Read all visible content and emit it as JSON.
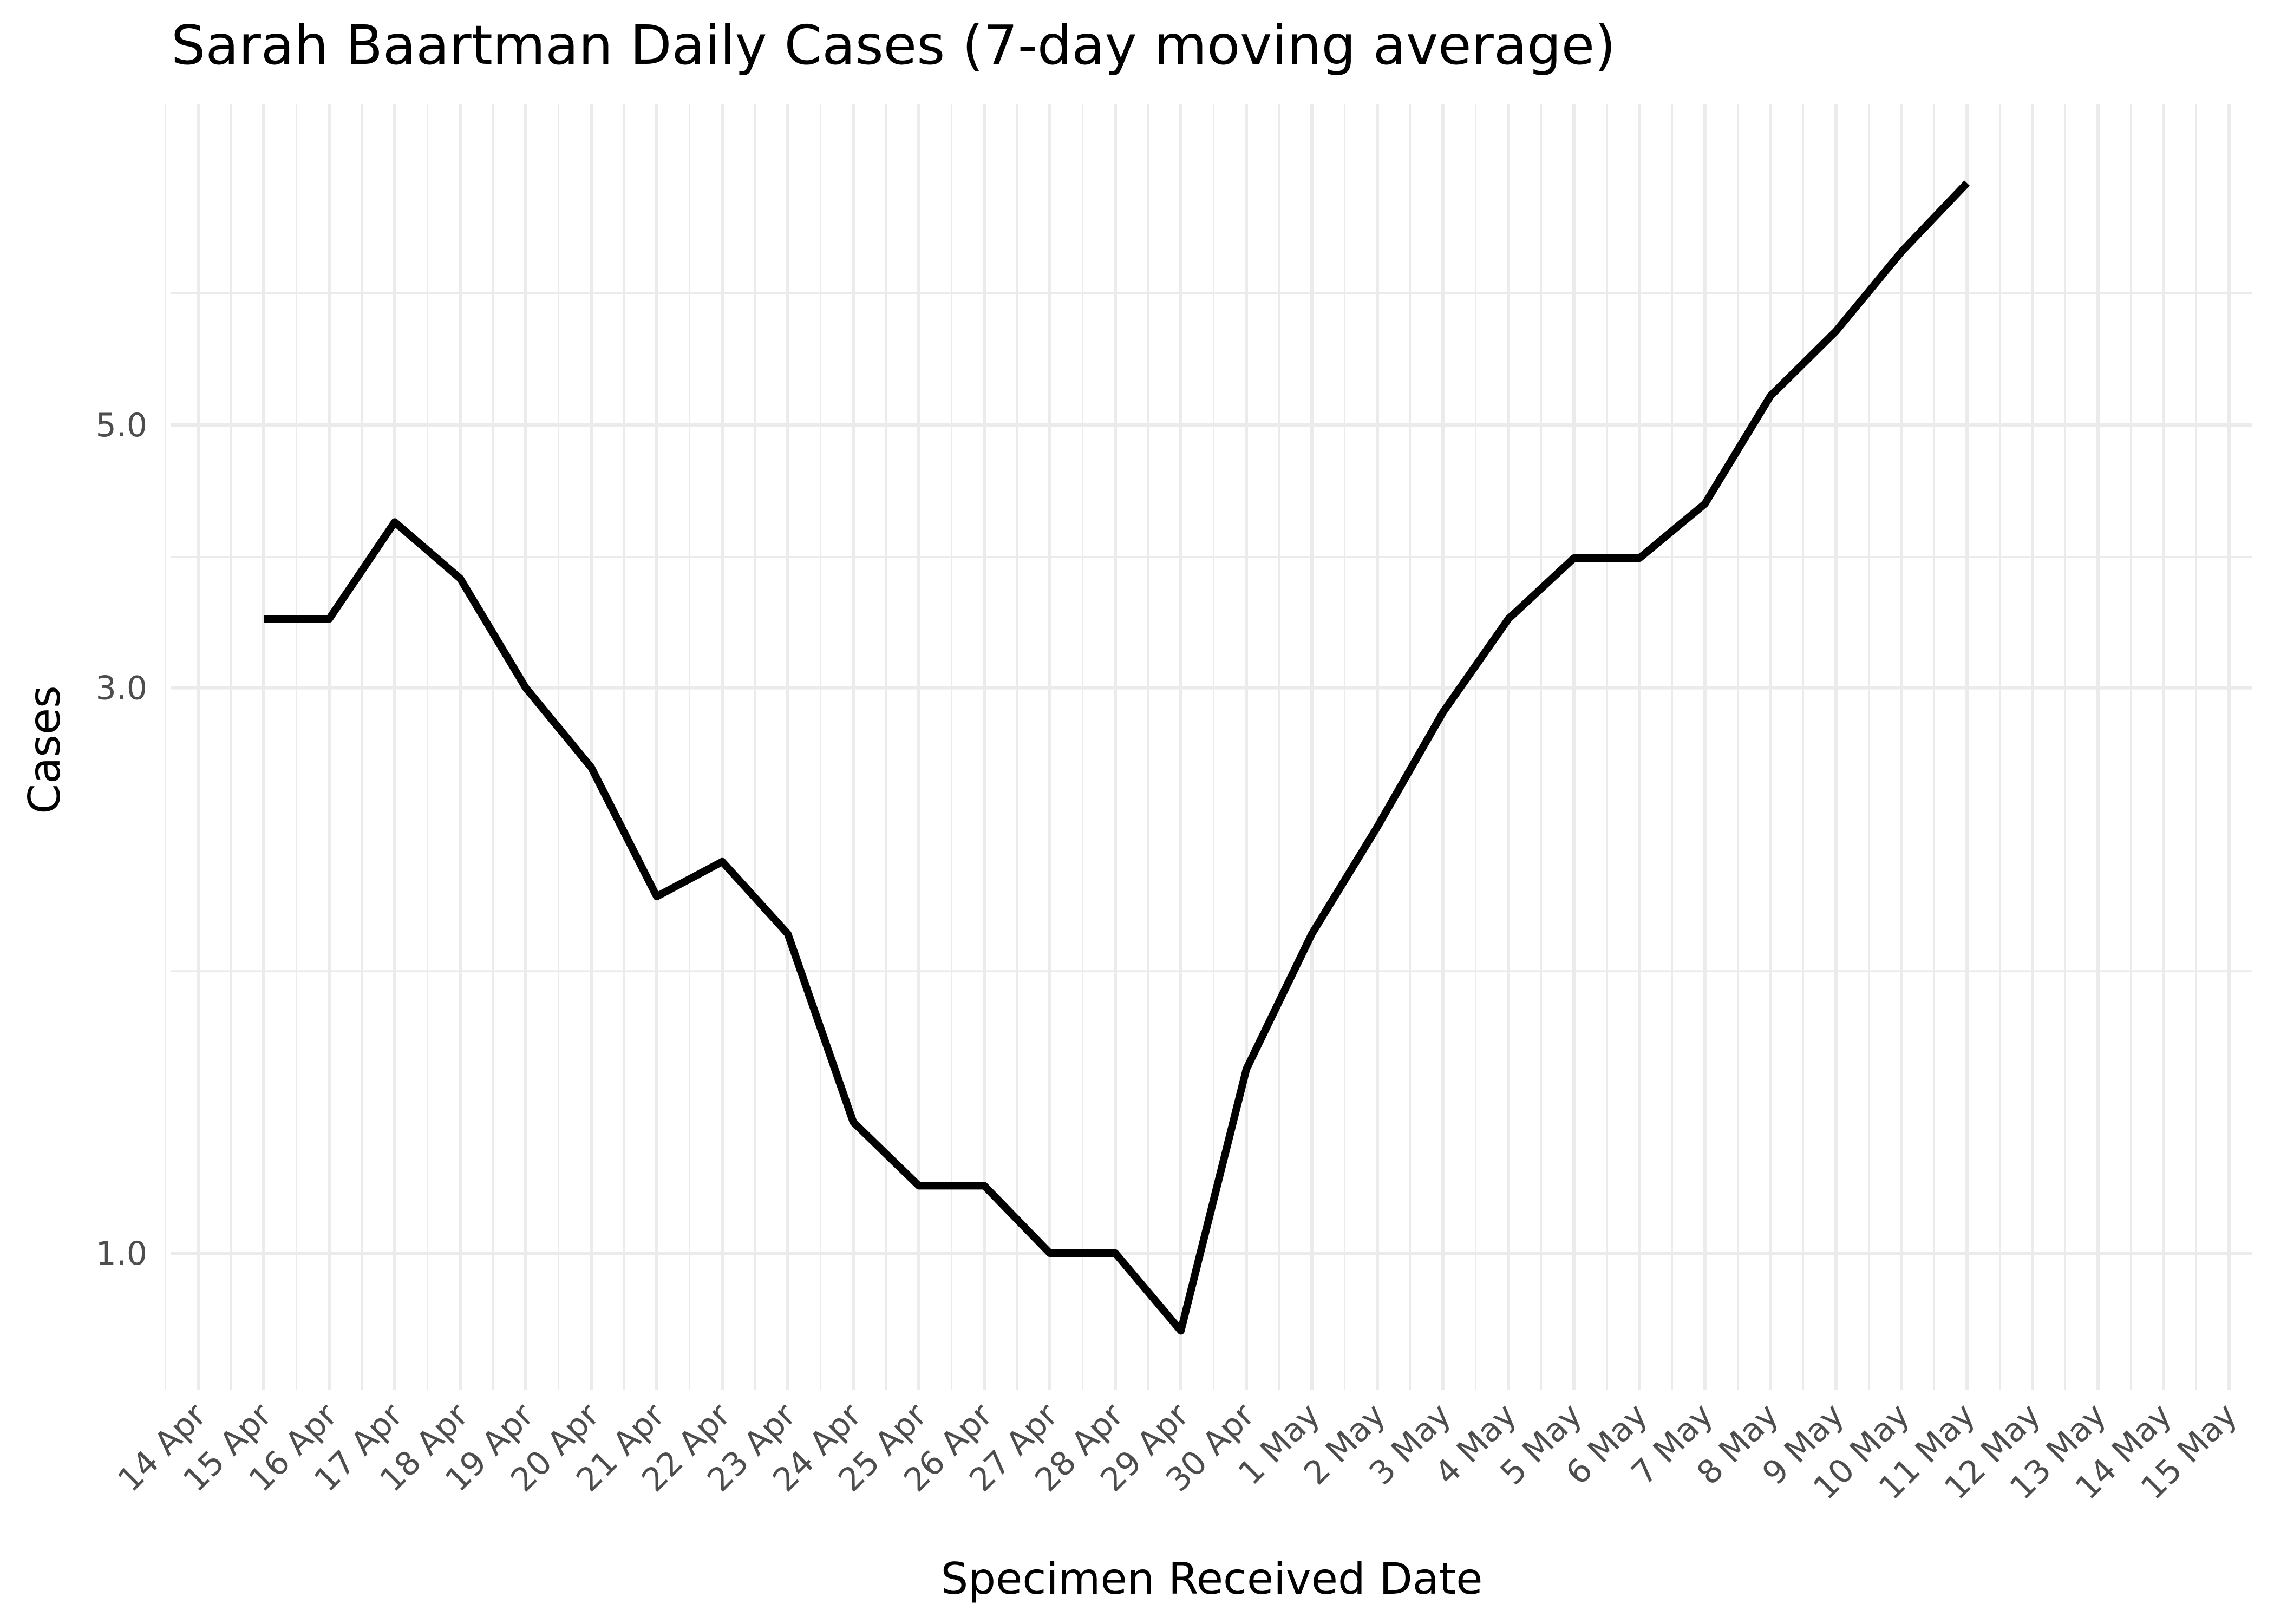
{
  "chart_data": {
    "type": "line",
    "title": "Sarah Baartman Daily Cases (7-day moving average)",
    "xlabel": "Specimen Received Date",
    "ylabel": "Cases",
    "y_scale": "log",
    "grid": true,
    "legend": "none",
    "line_color": "#000000",
    "grid_color": "#ebebeb",
    "x_tick_labels": [
      "14 Apr",
      "15 Apr",
      "16 Apr",
      "17 Apr",
      "18 Apr",
      "19 Apr",
      "20 Apr",
      "21 Apr",
      "22 Apr",
      "23 Apr",
      "24 Apr",
      "25 Apr",
      "26 Apr",
      "27 Apr",
      "28 Apr",
      "29 Apr",
      "30 Apr",
      "1 May",
      "2 May",
      "3 May",
      "4 May",
      "5 May",
      "6 May",
      "7 May",
      "8 May",
      "9 May",
      "10 May",
      "11 May",
      "12 May",
      "13 May",
      "14 May",
      "15 May"
    ],
    "y_ticks": [
      {
        "value": 1.0,
        "label": "1.0"
      },
      {
        "value": 3.0,
        "label": "3.0"
      },
      {
        "value": 5.0,
        "label": "5.0"
      }
    ],
    "y_minor_ticks": [
      1.73,
      3.87,
      6.46
    ],
    "ylim": [
      0.84,
      7.8
    ],
    "series": [
      {
        "x": [
          "15 Apr",
          "16 Apr",
          "17 Apr",
          "18 Apr",
          "19 Apr",
          "20 Apr",
          "21 Apr",
          "22 Apr",
          "23 Apr",
          "24 Apr",
          "25 Apr",
          "26 Apr",
          "27 Apr",
          "28 Apr",
          "29 Apr",
          "30 Apr",
          "1 May",
          "2 May",
          "3 May",
          "4 May",
          "5 May",
          "6 May",
          "7 May",
          "8 May",
          "9 May",
          "10 May",
          "11 May"
        ],
        "values": [
          3.43,
          3.43,
          4.14,
          3.71,
          3.0,
          2.57,
          2.0,
          2.14,
          1.86,
          1.29,
          1.14,
          1.14,
          1.0,
          1.0,
          0.86,
          1.43,
          1.86,
          2.29,
          2.86,
          3.43,
          3.86,
          3.86,
          4.29,
          5.29,
          6.0,
          7.0,
          8.0
        ]
      }
    ]
  }
}
